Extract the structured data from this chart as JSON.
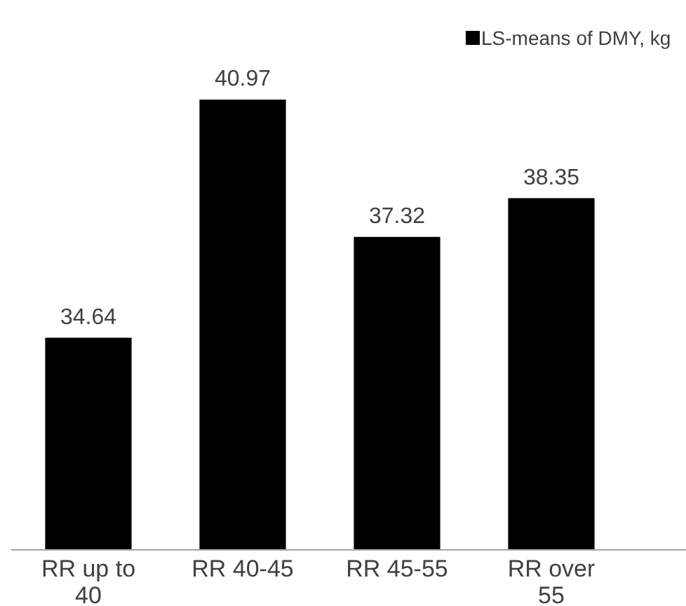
{
  "chart_data": {
    "type": "bar",
    "categories": [
      "RR up to 40",
      "RR 40-45",
      "RR 45-55",
      "RR over 55"
    ],
    "series": [
      {
        "name": "LS-means of DMY, kg",
        "color": "#000000",
        "values": [
          34.64,
          40.97,
          37.32,
          38.35
        ]
      }
    ],
    "ylim": [
      29,
      40.97
    ],
    "data_labels": true,
    "legend": "top right",
    "tick_labels": "x"
  }
}
